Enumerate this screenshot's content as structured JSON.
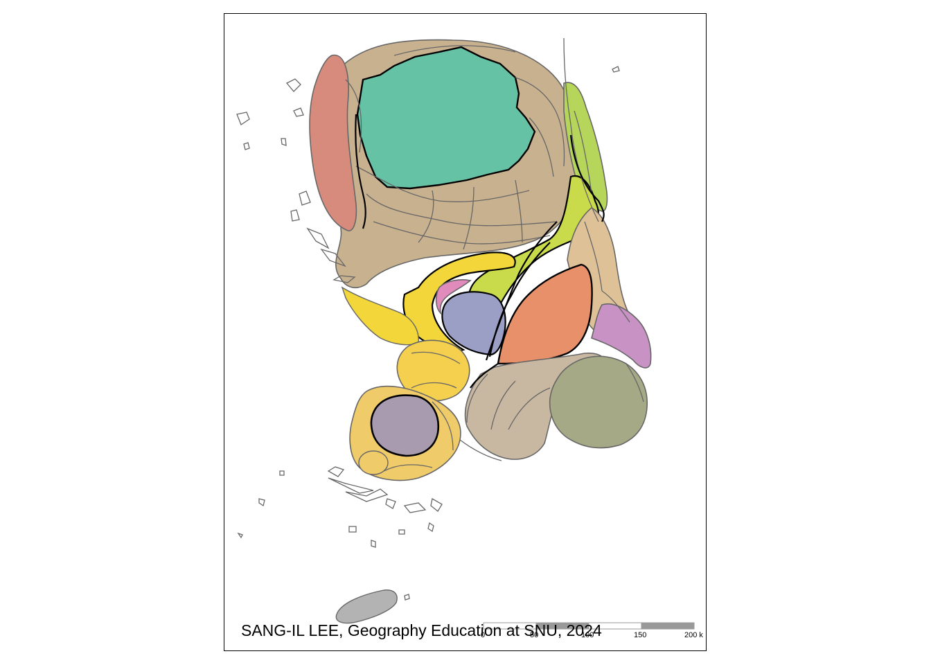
{
  "credit": "SANG-IL LEE, Geography Education at SNU, 2024",
  "scale_bar": {
    "ticks": [
      "0",
      "50",
      "100",
      "150",
      "200 k"
    ],
    "colors": [
      "#ffffff",
      "#999999"
    ]
  },
  "regions": [
    {
      "id": "seoul",
      "fill": "#66c2a5"
    },
    {
      "id": "gyeonggi",
      "fill": "#c8b18f"
    },
    {
      "id": "incheon",
      "fill": "#d68b7d"
    },
    {
      "id": "gangwon",
      "fill": "#b5d65b"
    },
    {
      "id": "chungbuk",
      "fill": "#c9db4a"
    },
    {
      "id": "chungnam",
      "fill": "#f2d63a"
    },
    {
      "id": "sejong",
      "fill": "#e18bbd"
    },
    {
      "id": "daejeon",
      "fill": "#9b9fc6"
    },
    {
      "id": "daegu",
      "fill": "#e8906a"
    },
    {
      "id": "gyeongbuk",
      "fill": "#dfc197"
    },
    {
      "id": "ulsan",
      "fill": "#c892c4"
    },
    {
      "id": "gyeongnam",
      "fill": "#c8b8a1"
    },
    {
      "id": "busan",
      "fill": "#a5a985"
    },
    {
      "id": "jeonbuk",
      "fill": "#f5d04f"
    },
    {
      "id": "gwangju",
      "fill": "#a89bb0"
    },
    {
      "id": "jeonnam",
      "fill": "#f0cb6a"
    },
    {
      "id": "jeju",
      "fill": "#b3b3b3"
    }
  ]
}
